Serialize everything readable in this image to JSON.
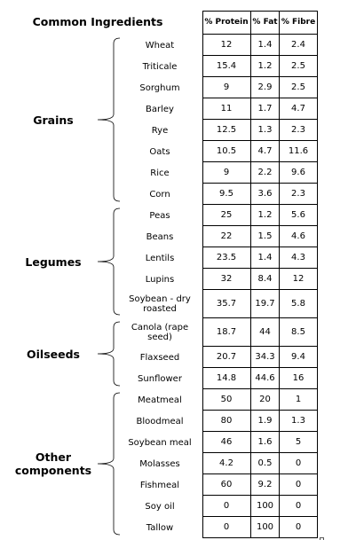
{
  "title": "Common Ingredients",
  "columns": [
    "% Protein",
    "% Fat",
    "% Fibre"
  ],
  "groups": [
    {
      "label": "Grains",
      "rows": [
        {
          "name": "Wheat",
          "values": [
            12,
            1.4,
            2.4
          ]
        },
        {
          "name": "Triticale",
          "values": [
            15.4,
            1.2,
            2.5
          ]
        },
        {
          "name": "Sorghum",
          "values": [
            9,
            2.9,
            2.5
          ]
        },
        {
          "name": "Barley",
          "values": [
            11,
            1.7,
            4.7
          ]
        },
        {
          "name": "Rye",
          "values": [
            12.5,
            1.3,
            2.3
          ]
        },
        {
          "name": "Oats",
          "values": [
            10.5,
            4.7,
            11.6
          ]
        },
        {
          "name": "Rice",
          "values": [
            9,
            2.2,
            9.6
          ]
        },
        {
          "name": "Corn",
          "values": [
            9.5,
            3.6,
            2.3
          ]
        }
      ]
    },
    {
      "label": "Legumes",
      "rows": [
        {
          "name": "Peas",
          "values": [
            25,
            1.2,
            5.6
          ]
        },
        {
          "name": "Beans",
          "values": [
            22,
            1.5,
            4.6
          ]
        },
        {
          "name": "Lentils",
          "values": [
            23.5,
            1.4,
            4.3
          ]
        },
        {
          "name": "Lupins",
          "values": [
            32,
            8.4,
            12
          ]
        },
        {
          "name": "Soybean - dry roasted",
          "values": [
            35.7,
            19.7,
            5.8
          ]
        }
      ]
    },
    {
      "label": "Oilseeds",
      "rows": [
        {
          "name": "Canola (rape seed)",
          "values": [
            18.7,
            44,
            8.5
          ]
        },
        {
          "name": "Flaxseed",
          "values": [
            20.7,
            34.3,
            9.4
          ]
        },
        {
          "name": "Sunflower",
          "values": [
            14.8,
            44.6,
            16
          ]
        }
      ]
    },
    {
      "label": "Other components",
      "rows": [
        {
          "name": "Meatmeal",
          "values": [
            50,
            20,
            1
          ]
        },
        {
          "name": "Bloodmeal",
          "values": [
            80,
            1.9,
            1.3
          ]
        },
        {
          "name": "Soybean meal",
          "values": [
            46,
            1.6,
            5
          ]
        },
        {
          "name": "Molasses",
          "values": [
            4.2,
            0.5,
            0
          ]
        },
        {
          "name": "Fishmeal",
          "values": [
            60,
            9.2,
            0
          ]
        },
        {
          "name": "Soy oil",
          "values": [
            0,
            100,
            0
          ]
        },
        {
          "name": "Tallow",
          "values": [
            0,
            100,
            0
          ]
        }
      ]
    }
  ]
}
